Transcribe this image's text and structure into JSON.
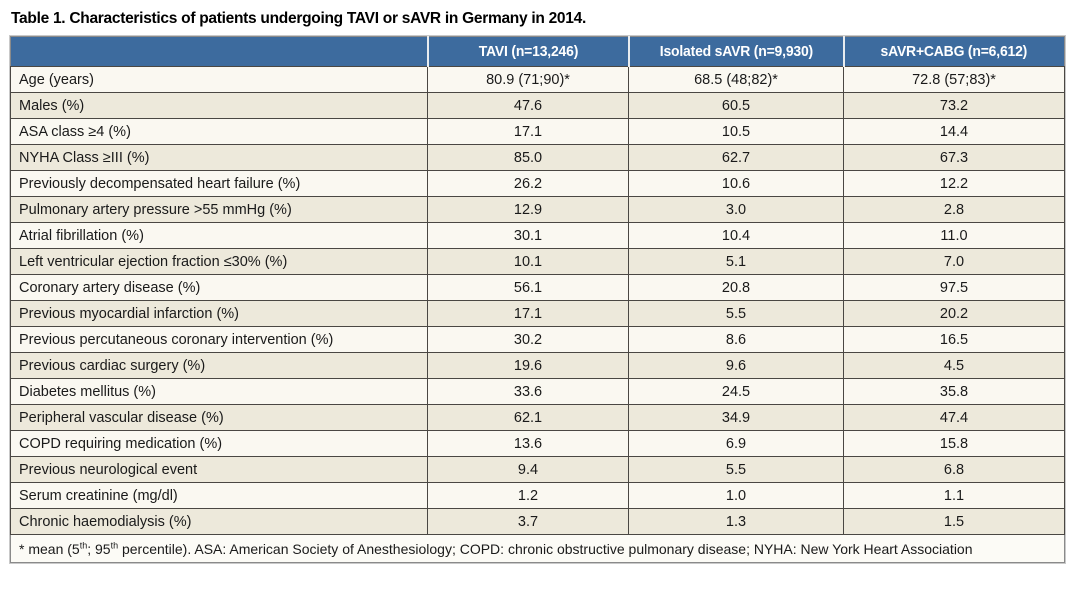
{
  "page": {
    "title": "Table 1. Characteristics of patients undergoing TAVI or sAVR in Germany in 2014."
  },
  "table": {
    "columns": [
      "",
      "TAVI (n=13,246)",
      "Isolated sAVR (n=9,930)",
      "sAVR+CABG (n=6,612)"
    ],
    "rows": [
      {
        "label": "Age (years)",
        "values": [
          "80.9 (71;90)*",
          "68.5 (48;82)*",
          "72.8 (57;83)*"
        ]
      },
      {
        "label": "Males (%)",
        "values": [
          "47.6",
          "60.5",
          "73.2"
        ]
      },
      {
        "label": "ASA class ≥4 (%)",
        "values": [
          "17.1",
          "10.5",
          "14.4"
        ]
      },
      {
        "label": "NYHA Class ≥III (%)",
        "values": [
          "85.0",
          "62.7",
          "67.3"
        ]
      },
      {
        "label": "Previously decompensated heart failure (%)",
        "values": [
          "26.2",
          "10.6",
          "12.2"
        ]
      },
      {
        "label": "Pulmonary artery pressure >55 mmHg (%)",
        "values": [
          "12.9",
          "3.0",
          "2.8"
        ]
      },
      {
        "label": "Atrial fibrillation (%)",
        "values": [
          "30.1",
          "10.4",
          "11.0"
        ]
      },
      {
        "label": "Left ventricular ejection fraction ≤30% (%)",
        "values": [
          "10.1",
          "5.1",
          "7.0"
        ]
      },
      {
        "label": "Coronary artery disease (%)",
        "values": [
          "56.1",
          "20.8",
          "97.5"
        ]
      },
      {
        "label": "Previous myocardial infarction (%)",
        "values": [
          "17.1",
          "5.5",
          "20.2"
        ]
      },
      {
        "label": "Previous percutaneous coronary intervention (%)",
        "values": [
          "30.2",
          "8.6",
          "16.5"
        ]
      },
      {
        "label": "Previous cardiac surgery (%)",
        "values": [
          "19.6",
          "9.6",
          "4.5"
        ]
      },
      {
        "label": "Diabetes mellitus (%)",
        "values": [
          "33.6",
          "24.5",
          "35.8"
        ]
      },
      {
        "label": "Peripheral vascular disease (%)",
        "values": [
          "62.1",
          "34.9",
          "47.4"
        ]
      },
      {
        "label": "COPD requiring medication (%)",
        "values": [
          "13.6",
          "6.9",
          "15.8"
        ]
      },
      {
        "label": "Previous neurological event",
        "values": [
          "9.4",
          "5.5",
          "6.8"
        ]
      },
      {
        "label": "Serum creatinine (mg/dl)",
        "values": [
          "1.2",
          "1.0",
          "1.1"
        ]
      },
      {
        "label": "Chronic haemodialysis (%)",
        "values": [
          "3.7",
          "1.3",
          "1.5"
        ]
      }
    ]
  },
  "footnote": {
    "p1": "* mean (5",
    "sup1": "th",
    "p2": "; 95",
    "sup2": "th",
    "p3": " percentile). ASA: American Society of Anesthesiology; COPD: chronic obstructive pulmonary disease; NYHA: New York Heart Association"
  },
  "colors": {
    "header_bg": "#3d6b9e",
    "header_text": "#ffffff",
    "row_light": "#faf8f1",
    "row_tan": "#ede9db",
    "grid_line": "#4a4743",
    "outer_border": "#8a8a8a"
  }
}
